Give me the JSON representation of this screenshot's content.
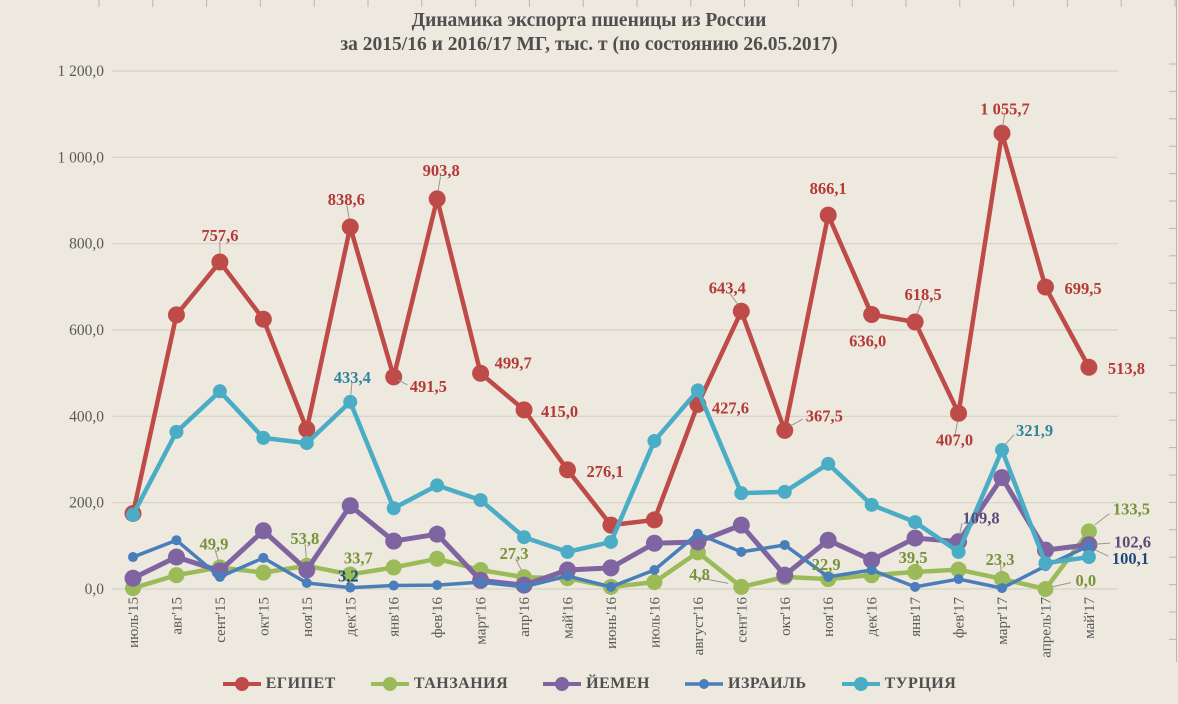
{
  "chart_data": {
    "type": "line",
    "title_line1": "Динамика экспорта пшеницы из России",
    "title_line2": "за  2015/16 и 2016/17 МГ, тыс. т (по состоянию 26.05.2017)",
    "ylim": [
      0,
      1200
    ],
    "grid": true,
    "legend_position": "bottom",
    "y_ticks": [
      {
        "v": 0,
        "t": "0,0"
      },
      {
        "v": 200,
        "t": "200,0"
      },
      {
        "v": 400,
        "t": "400,0"
      },
      {
        "v": 600,
        "t": "600,0"
      },
      {
        "v": 800,
        "t": "800,0"
      },
      {
        "v": 1000,
        "t": "1 000,0"
      },
      {
        "v": 1200,
        "t": "1 200,0"
      }
    ],
    "categories": [
      "июль'15",
      "авг'15",
      "сент'15",
      "окт'15",
      "ноя'15",
      "дек'15",
      "янв'16",
      "фев'16",
      "март'16",
      "апр'16",
      "май'16",
      "июнь'16",
      "июль'16",
      "август'16",
      "сент'16",
      "окт'16",
      "ноя'16",
      "дек'16",
      "янв'17",
      "фев'17",
      "март'17",
      "апрель'17",
      "май'17"
    ],
    "series": [
      {
        "name": "ЕГИПЕТ",
        "color": "#BE4B48",
        "label_color": "#B43A37",
        "line_w": 4.5,
        "marker_r": 8.5,
        "values": [
          175,
          635,
          757.6,
          625,
          370,
          838.6,
          491.5,
          903.8,
          499.7,
          415.0,
          276.1,
          148,
          160,
          427.6,
          643.4,
          367.5,
          866.1,
          636.0,
          618.5,
          407.0,
          1055.7,
          699.5,
          513.8
        ],
        "labels": [
          {
            "i": 2,
            "t": "757,6",
            "dx": 0,
            "dy": -26,
            "a": "m",
            "l": 1
          },
          {
            "i": 5,
            "t": "838,6",
            "dx": -4,
            "dy": -27,
            "a": "m",
            "l": 1
          },
          {
            "i": 6,
            "t": "491,5",
            "dx": 16,
            "dy": 10,
            "a": "s",
            "l": 1
          },
          {
            "i": 7,
            "t": "903,8",
            "dx": 4,
            "dy": -28,
            "a": "m",
            "l": 1
          },
          {
            "i": 8,
            "t": "499,7",
            "dx": 14,
            "dy": -10,
            "a": "s",
            "l": 0
          },
          {
            "i": 9,
            "t": "415,0",
            "dx": 17,
            "dy": 2,
            "a": "s",
            "l": 0
          },
          {
            "i": 10,
            "t": "276,1",
            "dx": 19,
            "dy": 2,
            "a": "s",
            "l": 0
          },
          {
            "i": 13,
            "t": "427,6",
            "dx": 14,
            "dy": 4,
            "a": "s",
            "l": 0
          },
          {
            "i": 14,
            "t": "643,4",
            "dx": -14,
            "dy": -23,
            "a": "m",
            "l": 1
          },
          {
            "i": 15,
            "t": "367,5",
            "dx": 21,
            "dy": -14,
            "a": "s",
            "l": 1
          },
          {
            "i": 16,
            "t": "866,1",
            "dx": 0,
            "dy": -26,
            "a": "m",
            "l": 0
          },
          {
            "i": 17,
            "t": "636,0",
            "dx": -4,
            "dy": 27,
            "a": "m",
            "l": 0
          },
          {
            "i": 18,
            "t": "618,5",
            "dx": 8,
            "dy": -27,
            "a": "m",
            "l": 1
          },
          {
            "i": 19,
            "t": "407,0",
            "dx": -4,
            "dy": 27,
            "a": "m",
            "l": 1
          },
          {
            "i": 20,
            "t": "1 055,7",
            "dx": 3,
            "dy": -24,
            "a": "m",
            "l": 1
          },
          {
            "i": 21,
            "t": "699,5",
            "dx": 19,
            "dy": 2,
            "a": "s",
            "l": 0
          },
          {
            "i": 22,
            "t": "513,8",
            "dx": 19,
            "dy": 2,
            "a": "s",
            "l": 0
          }
        ]
      },
      {
        "name": "ТАНЗАНИЯ",
        "color": "#9BBB59",
        "label_color": "#77933C",
        "line_w": 4.5,
        "marker_r": 8,
        "values": [
          2,
          32,
          49.9,
          38,
          53.8,
          33.7,
          50,
          70,
          44,
          27.3,
          25,
          5,
          16,
          85,
          4.8,
          28,
          22.9,
          32,
          39.5,
          45,
          23.3,
          0.0,
          133.5
        ],
        "labels": [
          {
            "i": 2,
            "t": "49,9",
            "dx": -6,
            "dy": -23,
            "a": "m",
            "l": 1
          },
          {
            "i": 4,
            "t": "53,8",
            "dx": -2,
            "dy": -27,
            "a": "m",
            "l": 1
          },
          {
            "i": 5,
            "t": "33,7",
            "dx": 8,
            "dy": -16,
            "a": "m",
            "l": 0
          },
          {
            "i": 9,
            "t": "27,3",
            "dx": -10,
            "dy": -23,
            "a": "m",
            "l": 1
          },
          {
            "i": 14,
            "t": "4,8",
            "dx": -52,
            "dy": -12,
            "a": "s",
            "l": 1
          },
          {
            "i": 16,
            "t": "22,9",
            "dx": -2,
            "dy": -14,
            "a": "m",
            "l": 0
          },
          {
            "i": 18,
            "t": "39,5",
            "dx": -2,
            "dy": -14,
            "a": "m",
            "l": 0
          },
          {
            "i": 20,
            "t": "23,3",
            "dx": -2,
            "dy": -19,
            "a": "m",
            "l": 1
          },
          {
            "i": 21,
            "t": "0,0",
            "dx": 30,
            "dy": -8,
            "a": "s",
            "l": 1
          },
          {
            "i": 22,
            "t": "133,5",
            "dx": 24,
            "dy": -22,
            "a": "s",
            "l": 1
          }
        ]
      },
      {
        "name": "ЙЕМЕН",
        "color": "#8064A2",
        "label_color": "#5F497A",
        "line_w": 5,
        "marker_r": 8.5,
        "values": [
          25,
          74,
          42,
          135,
          44,
          193,
          111,
          127,
          20,
          9,
          44,
          49,
          106,
          109,
          148,
          32,
          113,
          67,
          118,
          109.8,
          258,
          90,
          102.6
        ],
        "labels": [
          {
            "i": 19,
            "t": "109,8",
            "dx": 4,
            "dy": -23,
            "a": "s",
            "l": 1
          },
          {
            "i": 22,
            "t": "102,6",
            "dx": 25,
            "dy": -2,
            "a": "s",
            "l": 1
          }
        ]
      },
      {
        "name": "ИЗРАИЛЬ",
        "color": "#4A7EBB",
        "label_color": "#1F497D",
        "line_w": 3.5,
        "marker_r": 5,
        "values": [
          74,
          113,
          28,
          72,
          14,
          3.2,
          8,
          9,
          16,
          5,
          30,
          5,
          44,
          128,
          86,
          102,
          28,
          44,
          5,
          23,
          2,
          53,
          100.1
        ],
        "labels": [
          {
            "i": 5,
            "t": "3,2",
            "dx": -2,
            "dy": -11,
            "a": "m",
            "l": 0
          },
          {
            "i": 22,
            "t": "100,1",
            "dx": 23,
            "dy": 13,
            "a": "s",
            "l": 1
          }
        ]
      },
      {
        "name": "ТУРЦИЯ",
        "color": "#4BACC6",
        "label_color": "#31859C",
        "line_w": 4.5,
        "marker_r": 7,
        "values": [
          172,
          364,
          458,
          350,
          338,
          433.4,
          187,
          240,
          206,
          120,
          86,
          109,
          343,
          460,
          222,
          225,
          290,
          195,
          155,
          86,
          321.9,
          60,
          74
        ],
        "labels": [
          {
            "i": 5,
            "t": "433,4",
            "dx": 2,
            "dy": -24,
            "a": "m",
            "l": 1
          },
          {
            "i": 20,
            "t": "321,9",
            "dx": 14,
            "dy": -19,
            "a": "s",
            "l": 1
          }
        ]
      }
    ]
  }
}
